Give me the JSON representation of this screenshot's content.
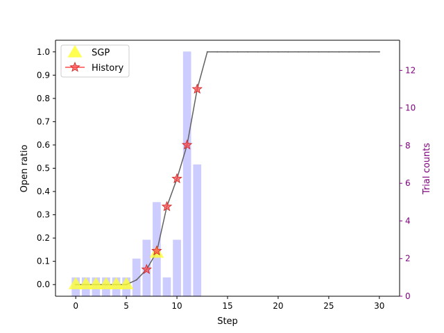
{
  "chart_data": {
    "type": "bar+line",
    "xlabel": "Step",
    "ylabel_left": "Open ratio",
    "ylabel_right": "Trial counts",
    "xlim": [
      -2,
      32
    ],
    "ylim_left": [
      -0.05,
      1.05
    ],
    "ylim_right": [
      0,
      13.6
    ],
    "xticks": [
      0,
      5,
      10,
      15,
      20,
      25,
      30
    ],
    "yticks_left": [
      0.0,
      0.1,
      0.2,
      0.3,
      0.4,
      0.5,
      0.6,
      0.7,
      0.8,
      0.9,
      1.0
    ],
    "yticks_right": [
      0,
      2,
      4,
      6,
      8,
      10,
      12
    ],
    "grid": false,
    "legend_position": "top-left",
    "colors": {
      "bars": "#ccccff",
      "line": "#606060",
      "sgp": "#ffff33",
      "history": "#ff4d4d",
      "history_edge": "#cc2222",
      "right_axis": "#800080",
      "axis": "#000000"
    },
    "trial_counts": {
      "x": [
        0,
        1,
        2,
        3,
        4,
        5,
        6,
        7,
        8,
        9,
        10,
        11,
        12
      ],
      "values": [
        1,
        1,
        1,
        1,
        1,
        1,
        2,
        3,
        5,
        1,
        3,
        13,
        7
      ]
    },
    "open_ratio_line": {
      "x": [
        0,
        1,
        2,
        3,
        4,
        5,
        6,
        7,
        8,
        9,
        10,
        11,
        12,
        13,
        14,
        15,
        16,
        17,
        18,
        19,
        20,
        21,
        22,
        23,
        24,
        25,
        26,
        27,
        28,
        29,
        30
      ],
      "y": [
        0,
        0,
        0,
        0,
        0,
        0,
        0.02,
        0.065,
        0.14,
        0.335,
        0.455,
        0.6,
        0.84,
        1,
        1,
        1,
        1,
        1,
        1,
        1,
        1,
        1,
        1,
        1,
        1,
        1,
        1,
        1,
        1,
        1,
        1
      ]
    },
    "series": [
      {
        "name": "SGP",
        "marker": "triangle",
        "x": [
          0,
          1,
          2,
          3,
          4,
          5,
          8
        ],
        "y": [
          0,
          0,
          0,
          0,
          0,
          0,
          0.135
        ]
      },
      {
        "name": "History",
        "marker": "star",
        "x": [
          7,
          8,
          9,
          10,
          11,
          12
        ],
        "y": [
          0.065,
          0.145,
          0.335,
          0.455,
          0.6,
          0.84
        ]
      }
    ]
  }
}
